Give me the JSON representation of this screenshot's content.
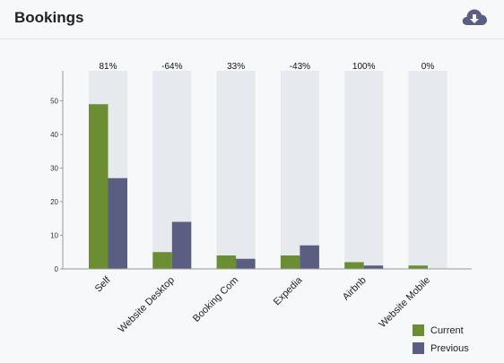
{
  "header": {
    "title": "Bookings",
    "download_icon": "cloud-download-icon"
  },
  "colors": {
    "current": "#6b8e33",
    "previous": "#5a5f82",
    "band": "#e6eaee",
    "axis": "#999999"
  },
  "chart_data": {
    "type": "bar",
    "title": "",
    "xlabel": "",
    "ylabel": "",
    "ylim": [
      0,
      60
    ],
    "yticks": [
      0,
      10,
      20,
      30,
      40,
      50
    ],
    "categories": [
      "Self",
      "Website Desktop",
      "Booking Com",
      "Expedia",
      "Airbnb",
      "Website Mobile"
    ],
    "series": [
      {
        "name": "Current",
        "values": [
          49,
          5,
          4,
          4,
          2,
          1
        ]
      },
      {
        "name": "Previous",
        "values": [
          27,
          14,
          3,
          7,
          1,
          0
        ]
      }
    ],
    "annotations": [
      "81%",
      "-64%",
      "33%",
      "-43%",
      "100%",
      "0%"
    ],
    "legend": {
      "position": "bottom-right"
    },
    "grid": false
  }
}
